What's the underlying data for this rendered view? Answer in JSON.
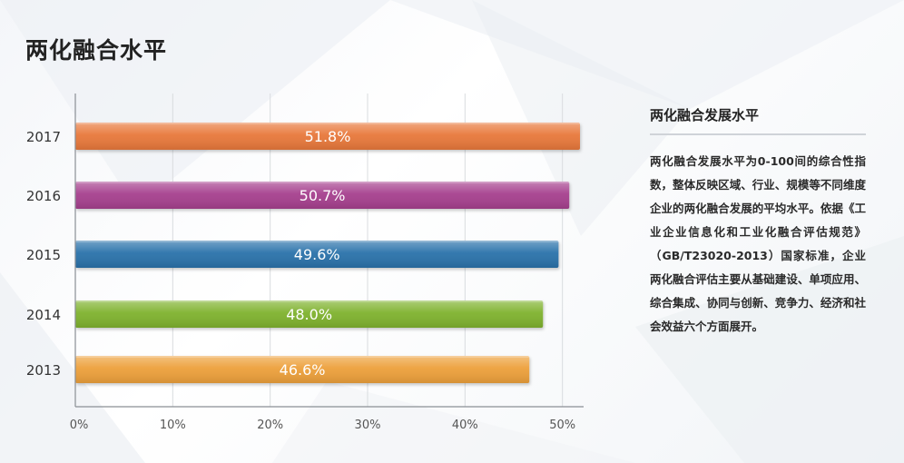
{
  "page": {
    "title": "两化融合水平"
  },
  "side_panel": {
    "heading": "两化融合发展水平",
    "body": "两化融合发展水平为0-100间的综合性指数，整体反映区域、行业、规模等不同维度企业的两化融合发展的平均水平。依据《工业企业信息化和工业化融合评估规范》（GB/T23020-2013）国家标准，企业两化融合评估主要从基础建设、单项应用、综合集成、协同与创新、竞争力、经济和社会效益六个方面展开。"
  },
  "chart_data": {
    "type": "bar",
    "orientation": "horizontal",
    "categories": [
      "2017",
      "2016",
      "2015",
      "2014",
      "2013"
    ],
    "values": [
      51.8,
      50.7,
      49.6,
      48.0,
      46.6
    ],
    "value_labels": [
      "51.8%",
      "50.7%",
      "49.6%",
      "48.0%",
      "46.6%"
    ],
    "bar_colors": [
      "#e8783a",
      "#a6408e",
      "#2b72aa",
      "#7fb22e",
      "#eda03a"
    ],
    "x_ticks": [
      0,
      10,
      20,
      30,
      40,
      50
    ],
    "x_tick_labels": [
      "0%",
      "10%",
      "20%",
      "30%",
      "40%",
      "50%"
    ],
    "xlim": [
      0,
      51.8
    ],
    "grid": true,
    "gridline_color": "#d9dcdf",
    "axis_color": "#8a8f95"
  }
}
